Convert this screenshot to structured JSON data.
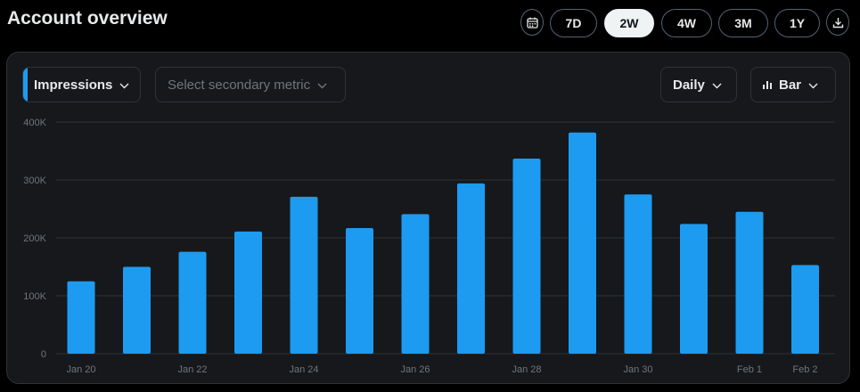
{
  "header": {
    "title": "Account overview"
  },
  "range_buttons": [
    {
      "label": "7D",
      "active": false
    },
    {
      "label": "2W",
      "active": true
    },
    {
      "label": "4W",
      "active": false
    },
    {
      "label": "3M",
      "active": false
    },
    {
      "label": "1Y",
      "active": false
    }
  ],
  "icons": {
    "calendar": "calendar-icon",
    "download": "download-icon",
    "chevron": "chevron-down-icon",
    "bar_chart": "bar-chart-icon"
  },
  "controls": {
    "primary_metric": "Impressions",
    "secondary_metric_placeholder": "Select secondary metric",
    "interval": "Daily",
    "chart_type": "Bar"
  },
  "colors": {
    "accent": "#1d9bf0",
    "bar": "#1d9bf0",
    "background": "#000000",
    "card": "#16181c"
  },
  "chart_data": {
    "type": "bar",
    "x": [
      "Jan 20",
      "Jan 21",
      "Jan 22",
      "Jan 23",
      "Jan 24",
      "Jan 25",
      "Jan 26",
      "Jan 27",
      "Jan 28",
      "Jan 29",
      "Jan 30",
      "Jan 31",
      "Feb 1",
      "Feb 2"
    ],
    "values": [
      125000,
      150000,
      176000,
      211000,
      271000,
      217000,
      241000,
      294000,
      337000,
      382000,
      275000,
      224000,
      245000,
      153000
    ],
    "x_tick_labels": [
      "Jan 20",
      "Jan 22",
      "Jan 24",
      "Jan 26",
      "Jan 28",
      "Jan 30",
      "Feb 1",
      "Feb 2"
    ],
    "y_tick_labels": [
      "0",
      "100K",
      "200K",
      "300K",
      "400K"
    ],
    "y_ticks": [
      0,
      100000,
      200000,
      300000,
      400000
    ],
    "ylim": [
      0,
      400000
    ],
    "grid": true,
    "legend": "none"
  }
}
